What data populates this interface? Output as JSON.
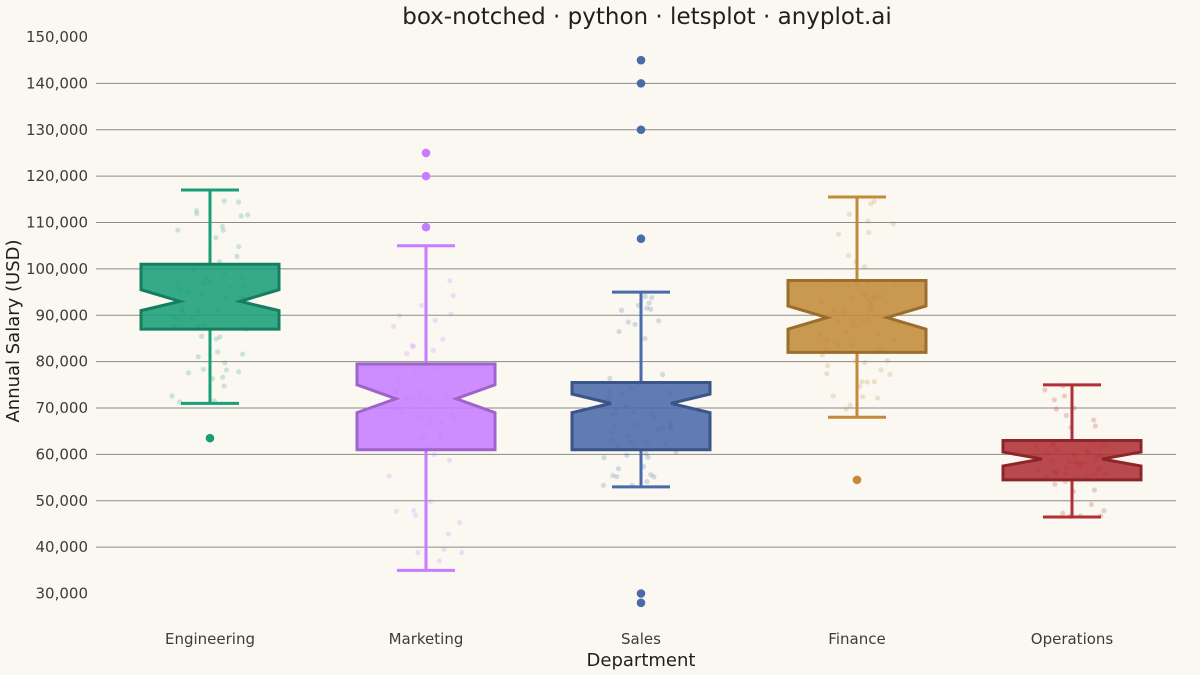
{
  "chart_data": {
    "type": "box",
    "title": "box-notched · python · letsplot · anyplot.ai",
    "xlabel": "Department",
    "ylabel": "Annual Salary (USD)",
    "ylim": [
      25000,
      150000
    ],
    "y_ticks": [
      30000,
      40000,
      50000,
      60000,
      70000,
      80000,
      90000,
      100000,
      110000,
      120000,
      130000,
      140000,
      150000
    ],
    "y_tick_labels": [
      "30,000",
      "40,000",
      "50,000",
      "60,000",
      "70,000",
      "80,000",
      "90,000",
      "100,000",
      "110,000",
      "120,000",
      "130,000",
      "140,000",
      "150,000"
    ],
    "grid": true,
    "notched": true,
    "jittered_points_shown": true,
    "categories": [
      "Engineering",
      "Marketing",
      "Sales",
      "Finance",
      "Operations"
    ],
    "boxes": [
      {
        "category": "Engineering",
        "color": "#1A9E78",
        "whisker_low": 71000,
        "q1": 87000,
        "median": 93000,
        "q3": 101000,
        "whisker_high": 117000,
        "notch_low": 91000,
        "notch_high": 95500,
        "outliers": [
          63500
        ]
      },
      {
        "category": "Marketing",
        "color": "#C77DFF",
        "whisker_low": 35000,
        "q1": 61000,
        "median": 72000,
        "q3": 79500,
        "whisker_high": 105000,
        "notch_low": 69000,
        "notch_high": 75000,
        "outliers": [
          109000,
          120000,
          125000
        ]
      },
      {
        "category": "Sales",
        "color": "#4A6AAA",
        "whisker_low": 53000,
        "q1": 61000,
        "median": 71000,
        "q3": 75500,
        "whisker_high": 95000,
        "notch_low": 69000,
        "notch_high": 73000,
        "outliers": [
          28000,
          30000,
          106500,
          130000,
          140000,
          145000
        ]
      },
      {
        "category": "Finance",
        "color": "#C28A3A",
        "whisker_low": 68000,
        "q1": 82000,
        "median": 89500,
        "q3": 97500,
        "whisker_high": 115500,
        "notch_low": 87000,
        "notch_high": 92000,
        "outliers": [
          54500
        ]
      },
      {
        "category": "Operations",
        "color": "#B03035",
        "whisker_low": 46500,
        "q1": 54500,
        "median": 59000,
        "q3": 63000,
        "whisker_high": 75000,
        "notch_low": 57500,
        "notch_high": 60500,
        "outliers": []
      }
    ]
  }
}
